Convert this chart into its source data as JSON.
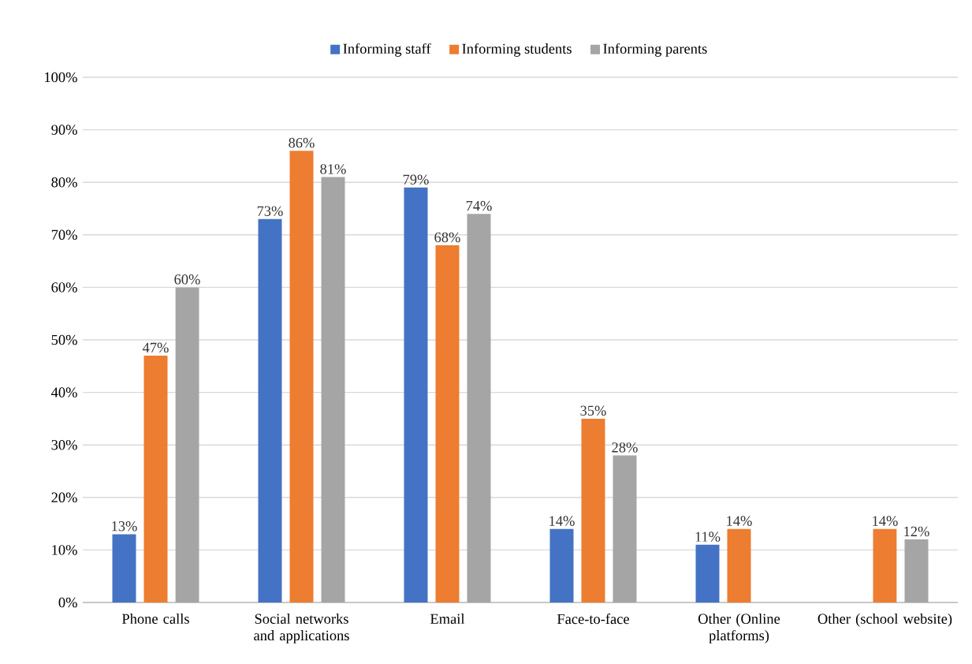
{
  "chart_data": {
    "type": "bar",
    "categories": [
      "Phone calls",
      "Social networks and applications",
      "Email",
      "Face-to-face",
      "Other (Online platforms)",
      "Other (school website)"
    ],
    "series": [
      {
        "name": "Informing staff",
        "color": "#4472c4",
        "values": [
          13,
          73,
          79,
          14,
          11,
          null
        ],
        "value_labels": [
          "13%",
          "73%",
          "79%",
          "14%",
          "11%",
          null
        ]
      },
      {
        "name": "Informing students",
        "color": "#ed7d31",
        "values": [
          47,
          86,
          68,
          35,
          14,
          14
        ],
        "value_labels": [
          "47%",
          "86%",
          "68%",
          "35%",
          "14%",
          "14%"
        ]
      },
      {
        "name": "Informing parents",
        "color": "#a5a5a5",
        "values": [
          60,
          81,
          74,
          28,
          null,
          12
        ],
        "value_labels": [
          "60%",
          "81%",
          "74%",
          "28%",
          null,
          "12%"
        ]
      }
    ],
    "ylim": [
      0,
      100
    ],
    "yticks": [
      {
        "value": 0,
        "label": "0%"
      },
      {
        "value": 10,
        "label": "10%"
      },
      {
        "value": 20,
        "label": "20%"
      },
      {
        "value": 30,
        "label": "30%"
      },
      {
        "value": 40,
        "label": "40%"
      },
      {
        "value": 50,
        "label": "50%"
      },
      {
        "value": 60,
        "label": "60%"
      },
      {
        "value": 70,
        "label": "70%"
      },
      {
        "value": 80,
        "label": "80%"
      },
      {
        "value": 90,
        "label": "90%"
      },
      {
        "value": 100,
        "label": "100%"
      }
    ],
    "grid": "y",
    "legend": "top"
  }
}
